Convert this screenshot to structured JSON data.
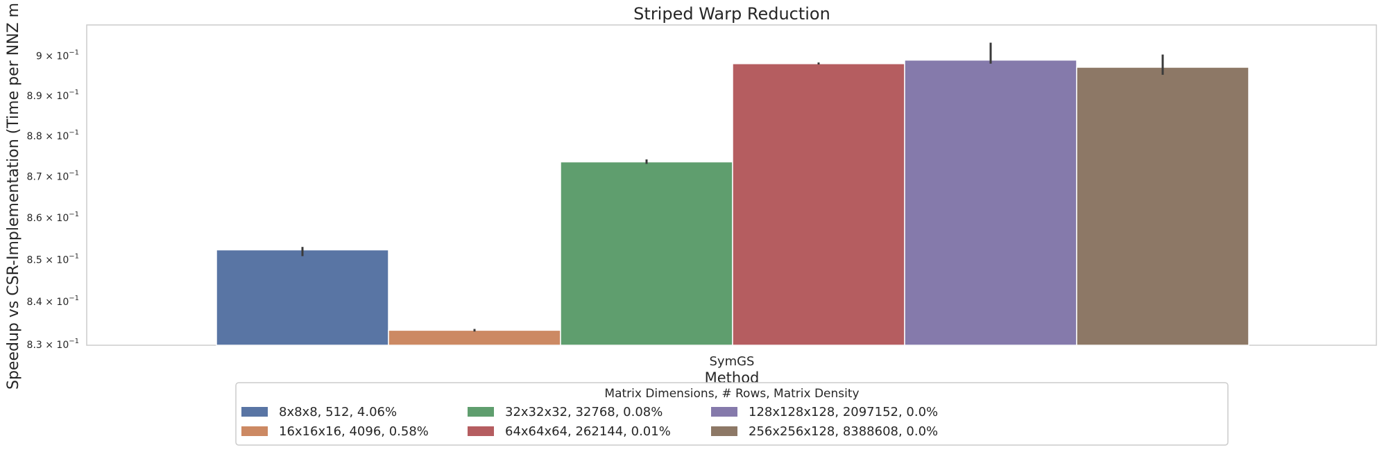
{
  "chart_data": {
    "type": "bar",
    "title": "Striped Warp Reduction",
    "xlabel": "Method",
    "ylabel": "Speedup vs CSR-Implementation (Time per NNZ m",
    "categories": [
      "SymGS"
    ],
    "yscale": "log",
    "ylim": [
      0.8298,
      0.9078
    ],
    "yticks": [
      {
        "value": 0.83,
        "mantissa": "8.3",
        "exp": "−1"
      },
      {
        "value": 0.84,
        "mantissa": "8.4",
        "exp": "−1"
      },
      {
        "value": 0.85,
        "mantissa": "8.5",
        "exp": "−1"
      },
      {
        "value": 0.86,
        "mantissa": "8.6",
        "exp": "−1"
      },
      {
        "value": 0.87,
        "mantissa": "8.7",
        "exp": "−1"
      },
      {
        "value": 0.88,
        "mantissa": "8.8",
        "exp": "−1"
      },
      {
        "value": 0.89,
        "mantissa": "8.9",
        "exp": "−1"
      },
      {
        "value": 0.9,
        "mantissa": "9",
        "exp": "−1"
      }
    ],
    "grid": false,
    "legend": {
      "title": "Matrix Dimensions, # Rows, Matrix Density",
      "placement": "bottom-center",
      "columns": 4
    },
    "series": [
      {
        "name": "8x8x8, 512, 4.06%",
        "color": "#5975a4",
        "value": 0.8523,
        "err": [
          0.8508,
          0.853
        ]
      },
      {
        "name": "16x16x16, 4096, 0.58%",
        "color": "#cc8963",
        "value": 0.8333,
        "err": [
          0.833,
          0.8336
        ]
      },
      {
        "name": "32x32x32, 32768, 0.08%",
        "color": "#5f9e6e",
        "value": 0.8736,
        "err": [
          0.8731,
          0.8742
        ]
      },
      {
        "name": "64x64x64, 262144, 0.01%",
        "color": "#b55d60",
        "value": 0.898,
        "err": [
          0.8978,
          0.8983
        ]
      },
      {
        "name": "128x128x128, 2097152, 0.0%",
        "color": "#857aab",
        "value": 0.8989,
        "err": [
          0.898,
          0.9033
        ]
      },
      {
        "name": "256x256x128, 8388608, 0.0%",
        "color": "#8d7866",
        "value": 0.8971,
        "err": [
          0.8952,
          0.9003
        ]
      }
    ]
  }
}
